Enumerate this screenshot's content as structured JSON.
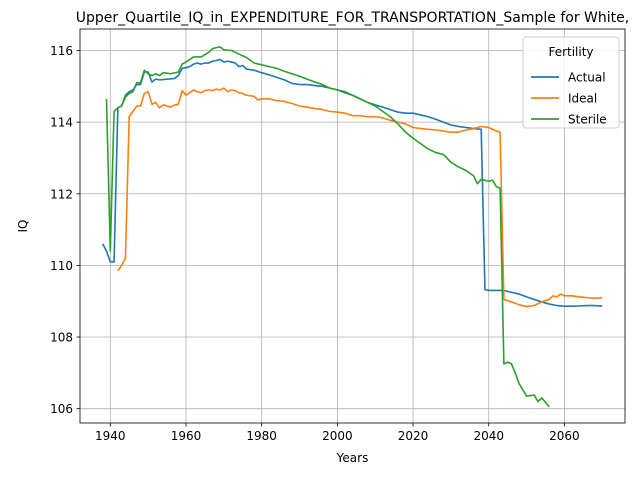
{
  "chart_data": {
    "type": "line",
    "title": "Upper_Quartile_IQ_in_EXPENDITURE_FOR_TRANSPORTATION_Sample for White,",
    "xlabel": "Years",
    "ylabel": "IQ",
    "xlim": [
      1932,
      2076
    ],
    "ylim": [
      105.6,
      116.6
    ],
    "xticks": [
      1940,
      1960,
      1980,
      2000,
      2020,
      2040,
      2060
    ],
    "yticks": [
      106,
      108,
      110,
      112,
      114,
      116
    ],
    "grid": true,
    "legend": {
      "title": "Fertility",
      "placement": "top-right"
    },
    "series": [
      {
        "name": "Actual",
        "color": "#1f77b4",
        "points": [
          [
            1938,
            110.6
          ],
          [
            1939,
            110.4
          ],
          [
            1940,
            110.1
          ],
          [
            1941,
            110.1
          ],
          [
            1942,
            114.4
          ],
          [
            1943,
            114.45
          ],
          [
            1944,
            114.75
          ],
          [
            1945,
            114.85
          ],
          [
            1946,
            114.9
          ],
          [
            1947,
            115.05
          ],
          [
            1948,
            115.05
          ],
          [
            1949,
            115.4
          ],
          [
            1950,
            115.4
          ],
          [
            1951,
            115.12
          ],
          [
            1952,
            115.2
          ],
          [
            1953,
            115.18
          ],
          [
            1955,
            115.2
          ],
          [
            1957,
            115.22
          ],
          [
            1958,
            115.3
          ],
          [
            1959,
            115.5
          ],
          [
            1960,
            115.52
          ],
          [
            1961,
            115.55
          ],
          [
            1962,
            115.62
          ],
          [
            1963,
            115.65
          ],
          [
            1964,
            115.62
          ],
          [
            1965,
            115.65
          ],
          [
            1966,
            115.65
          ],
          [
            1967,
            115.7
          ],
          [
            1968,
            115.72
          ],
          [
            1969,
            115.75
          ],
          [
            1970,
            115.68
          ],
          [
            1971,
            115.7
          ],
          [
            1972,
            115.68
          ],
          [
            1973,
            115.65
          ],
          [
            1974,
            115.55
          ],
          [
            1975,
            115.58
          ],
          [
            1976,
            115.48
          ],
          [
            1978,
            115.45
          ],
          [
            1980,
            115.38
          ],
          [
            1982,
            115.32
          ],
          [
            1984,
            115.25
          ],
          [
            1986,
            115.18
          ],
          [
            1988,
            115.08
          ],
          [
            1990,
            115.05
          ],
          [
            1992,
            115.05
          ],
          [
            1994,
            115.02
          ],
          [
            1996,
            115.0
          ],
          [
            1998,
            114.95
          ],
          [
            2000,
            114.9
          ],
          [
            2002,
            114.82
          ],
          [
            2004,
            114.75
          ],
          [
            2006,
            114.65
          ],
          [
            2008,
            114.55
          ],
          [
            2010,
            114.48
          ],
          [
            2012,
            114.42
          ],
          [
            2014,
            114.35
          ],
          [
            2016,
            114.28
          ],
          [
            2018,
            114.25
          ],
          [
            2020,
            114.25
          ],
          [
            2022,
            114.2
          ],
          [
            2024,
            114.15
          ],
          [
            2026,
            114.08
          ],
          [
            2028,
            114.0
          ],
          [
            2030,
            113.92
          ],
          [
            2032,
            113.88
          ],
          [
            2034,
            113.85
          ],
          [
            2036,
            113.82
          ],
          [
            2038,
            113.8
          ],
          [
            2039,
            109.32
          ],
          [
            2040,
            109.3
          ],
          [
            2042,
            109.3
          ],
          [
            2044,
            109.3
          ],
          [
            2046,
            109.25
          ],
          [
            2048,
            109.2
          ],
          [
            2050,
            109.12
          ],
          [
            2052,
            109.05
          ],
          [
            2054,
            108.98
          ],
          [
            2056,
            108.92
          ],
          [
            2058,
            108.88
          ],
          [
            2060,
            108.86
          ],
          [
            2062,
            108.86
          ],
          [
            2064,
            108.87
          ],
          [
            2066,
            108.88
          ],
          [
            2068,
            108.88
          ],
          [
            2070,
            108.86
          ]
        ]
      },
      {
        "name": "Ideal",
        "color": "#ff7f0e",
        "points": [
          [
            1942,
            109.85
          ],
          [
            1943,
            110.0
          ],
          [
            1944,
            110.2
          ],
          [
            1945,
            114.15
          ],
          [
            1946,
            114.3
          ],
          [
            1947,
            114.45
          ],
          [
            1948,
            114.45
          ],
          [
            1949,
            114.8
          ],
          [
            1950,
            114.85
          ],
          [
            1951,
            114.5
          ],
          [
            1952,
            114.55
          ],
          [
            1953,
            114.4
          ],
          [
            1954,
            114.48
          ],
          [
            1955,
            114.45
          ],
          [
            1956,
            114.42
          ],
          [
            1957,
            114.48
          ],
          [
            1958,
            114.5
          ],
          [
            1959,
            114.88
          ],
          [
            1960,
            114.75
          ],
          [
            1961,
            114.82
          ],
          [
            1962,
            114.9
          ],
          [
            1963,
            114.85
          ],
          [
            1964,
            114.82
          ],
          [
            1965,
            114.88
          ],
          [
            1966,
            114.9
          ],
          [
            1967,
            114.88
          ],
          [
            1968,
            114.92
          ],
          [
            1969,
            114.9
          ],
          [
            1970,
            114.95
          ],
          [
            1971,
            114.85
          ],
          [
            1972,
            114.9
          ],
          [
            1973,
            114.88
          ],
          [
            1974,
            114.82
          ],
          [
            1975,
            114.8
          ],
          [
            1976,
            114.75
          ],
          [
            1978,
            114.72
          ],
          [
            1979,
            114.62
          ],
          [
            1980,
            114.65
          ],
          [
            1982,
            114.65
          ],
          [
            1984,
            114.6
          ],
          [
            1986,
            114.58
          ],
          [
            1988,
            114.52
          ],
          [
            1990,
            114.45
          ],
          [
            1992,
            114.42
          ],
          [
            1994,
            114.38
          ],
          [
            1996,
            114.35
          ],
          [
            1998,
            114.3
          ],
          [
            2000,
            114.28
          ],
          [
            2002,
            114.25
          ],
          [
            2004,
            114.18
          ],
          [
            2006,
            114.18
          ],
          [
            2008,
            114.15
          ],
          [
            2010,
            114.15
          ],
          [
            2012,
            114.12
          ],
          [
            2014,
            114.05
          ],
          [
            2016,
            114.0
          ],
          [
            2018,
            113.95
          ],
          [
            2020,
            113.85
          ],
          [
            2022,
            113.82
          ],
          [
            2024,
            113.8
          ],
          [
            2026,
            113.78
          ],
          [
            2028,
            113.75
          ],
          [
            2030,
            113.72
          ],
          [
            2032,
            113.72
          ],
          [
            2034,
            113.78
          ],
          [
            2036,
            113.82
          ],
          [
            2038,
            113.88
          ],
          [
            2040,
            113.85
          ],
          [
            2042,
            113.75
          ],
          [
            2043,
            113.72
          ],
          [
            2044,
            109.05
          ],
          [
            2046,
            108.98
          ],
          [
            2048,
            108.9
          ],
          [
            2050,
            108.85
          ],
          [
            2052,
            108.88
          ],
          [
            2054,
            108.98
          ],
          [
            2056,
            109.05
          ],
          [
            2057,
            109.15
          ],
          [
            2058,
            109.12
          ],
          [
            2059,
            109.2
          ],
          [
            2060,
            109.15
          ],
          [
            2062,
            109.15
          ],
          [
            2064,
            109.12
          ],
          [
            2066,
            109.1
          ],
          [
            2068,
            109.08
          ],
          [
            2070,
            109.1
          ]
        ]
      },
      {
        "name": "Sterile",
        "color": "#2ca02c",
        "points": [
          [
            1939,
            114.65
          ],
          [
            1940,
            110.4
          ],
          [
            1941,
            114.3
          ],
          [
            1942,
            114.4
          ],
          [
            1943,
            114.45
          ],
          [
            1944,
            114.7
          ],
          [
            1945,
            114.8
          ],
          [
            1946,
            114.85
          ],
          [
            1947,
            115.1
          ],
          [
            1948,
            115.1
          ],
          [
            1949,
            115.45
          ],
          [
            1950,
            115.35
          ],
          [
            1951,
            115.3
          ],
          [
            1952,
            115.35
          ],
          [
            1953,
            115.3
          ],
          [
            1954,
            115.38
          ],
          [
            1956,
            115.35
          ],
          [
            1958,
            115.4
          ],
          [
            1959,
            115.62
          ],
          [
            1960,
            115.68
          ],
          [
            1961,
            115.75
          ],
          [
            1962,
            115.82
          ],
          [
            1964,
            115.82
          ],
          [
            1966,
            115.95
          ],
          [
            1967,
            116.05
          ],
          [
            1968,
            116.08
          ],
          [
            1969,
            116.1
          ],
          [
            1970,
            116.02
          ],
          [
            1972,
            116.0
          ],
          [
            1974,
            115.9
          ],
          [
            1976,
            115.8
          ],
          [
            1978,
            115.65
          ],
          [
            1980,
            115.6
          ],
          [
            1982,
            115.55
          ],
          [
            1984,
            115.5
          ],
          [
            1986,
            115.42
          ],
          [
            1988,
            115.35
          ],
          [
            1990,
            115.28
          ],
          [
            1992,
            115.2
          ],
          [
            1994,
            115.12
          ],
          [
            1996,
            115.05
          ],
          [
            1998,
            114.95
          ],
          [
            2000,
            114.9
          ],
          [
            2002,
            114.85
          ],
          [
            2004,
            114.75
          ],
          [
            2006,
            114.65
          ],
          [
            2008,
            114.55
          ],
          [
            2010,
            114.45
          ],
          [
            2012,
            114.3
          ],
          [
            2014,
            114.15
          ],
          [
            2016,
            113.95
          ],
          [
            2018,
            113.72
          ],
          [
            2020,
            113.55
          ],
          [
            2022,
            113.4
          ],
          [
            2024,
            113.25
          ],
          [
            2026,
            113.15
          ],
          [
            2028,
            113.1
          ],
          [
            2030,
            112.88
          ],
          [
            2032,
            112.75
          ],
          [
            2034,
            112.65
          ],
          [
            2036,
            112.5
          ],
          [
            2037,
            112.28
          ],
          [
            2038,
            112.4
          ],
          [
            2040,
            112.35
          ],
          [
            2041,
            112.38
          ],
          [
            2042,
            112.2
          ],
          [
            2043,
            112.15
          ],
          [
            2044,
            107.25
          ],
          [
            2045,
            107.3
          ],
          [
            2046,
            107.25
          ],
          [
            2047,
            107.0
          ],
          [
            2048,
            106.7
          ],
          [
            2050,
            106.35
          ],
          [
            2052,
            106.38
          ],
          [
            2053,
            106.2
          ],
          [
            2054,
            106.3
          ],
          [
            2056,
            106.05
          ]
        ]
      }
    ]
  }
}
